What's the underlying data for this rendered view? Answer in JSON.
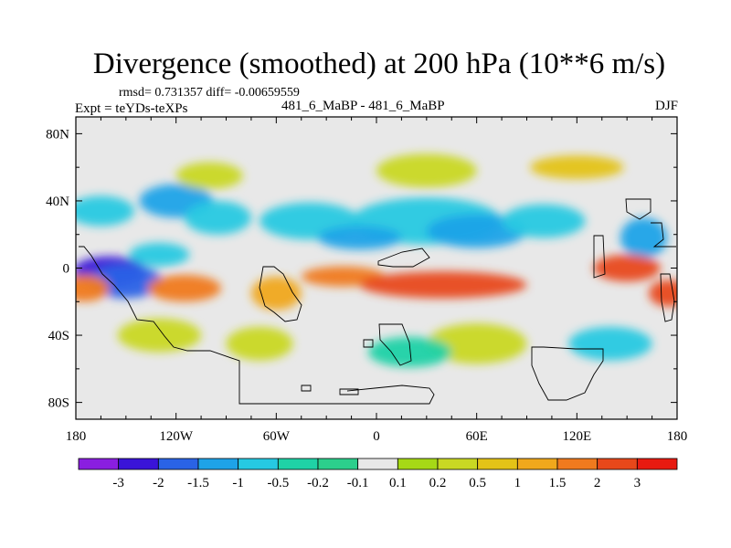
{
  "chart_data": {
    "type": "heatmap",
    "title": "Divergence (smoothed) at 200 hPa (10**6 m/s)",
    "stats": "rmsd= 0.731357 diff= -0.00659559",
    "left_label": "Expt = teYDs-teXPs",
    "center_label": "481_6_MaBP - 481_6_MaBP",
    "right_label": "DJF",
    "x_ticks": [
      "180",
      "120W",
      "60W",
      "0",
      "60E",
      "120E",
      "180"
    ],
    "x_range": [
      -180,
      180
    ],
    "y_ticks": [
      "80N",
      "40N",
      "0",
      "40S",
      "80S"
    ],
    "y_range": [
      -90,
      90
    ],
    "colorbar": {
      "labels": [
        "-3",
        "-2",
        "-1.5",
        "-1",
        "-0.5",
        "-0.2",
        "-0.1",
        "0.1",
        "0.2",
        "0.5",
        "1",
        "1.5",
        "2",
        "3"
      ],
      "colors": [
        "#8a1ee0",
        "#3a14d8",
        "#2a63e6",
        "#1ea3e8",
        "#26c9e2",
        "#1fd2a6",
        "#2ccf8c",
        "#e8e8e8",
        "#a6d916",
        "#c9d823",
        "#e4c317",
        "#f0a81c",
        "#f07a1e",
        "#e8481a",
        "#e81a10"
      ]
    },
    "field": [
      {
        "lon": -160,
        "lat": -2,
        "rx": 22,
        "ry": 9,
        "c": 1
      },
      {
        "lon": -150,
        "lat": -8,
        "rx": 22,
        "ry": 10,
        "c": 2
      },
      {
        "lon": -130,
        "lat": 8,
        "rx": 18,
        "ry": 7,
        "c": 4
      },
      {
        "lon": -165,
        "lat": 34,
        "rx": 20,
        "ry": 9,
        "c": 4
      },
      {
        "lon": -120,
        "lat": 40,
        "rx": 22,
        "ry": 10,
        "c": 3
      },
      {
        "lon": -95,
        "lat": 30,
        "rx": 20,
        "ry": 10,
        "c": 4
      },
      {
        "lon": -40,
        "lat": 28,
        "rx": 30,
        "ry": 11,
        "c": 4
      },
      {
        "lon": 30,
        "lat": 28,
        "rx": 45,
        "ry": 14,
        "c": 4
      },
      {
        "lon": 60,
        "lat": 22,
        "rx": 30,
        "ry": 10,
        "c": 3
      },
      {
        "lon": 100,
        "lat": 28,
        "rx": 25,
        "ry": 10,
        "c": 4
      },
      {
        "lon": -10,
        "lat": 18,
        "rx": 25,
        "ry": 7,
        "c": 3
      },
      {
        "lon": 160,
        "lat": 18,
        "rx": 14,
        "ry": 12,
        "c": 3
      },
      {
        "lon": -175,
        "lat": -12,
        "rx": 15,
        "ry": 8,
        "c": 12
      },
      {
        "lon": -115,
        "lat": -12,
        "rx": 22,
        "ry": 8,
        "c": 12
      },
      {
        "lon": -60,
        "lat": -15,
        "rx": 15,
        "ry": 10,
        "c": 11
      },
      {
        "lon": -20,
        "lat": -5,
        "rx": 25,
        "ry": 6,
        "c": 12
      },
      {
        "lon": 40,
        "lat": -10,
        "rx": 50,
        "ry": 8,
        "c": 13
      },
      {
        "lon": 150,
        "lat": 0,
        "rx": 20,
        "ry": 8,
        "c": 13
      },
      {
        "lon": 175,
        "lat": -15,
        "rx": 12,
        "ry": 8,
        "c": 13
      },
      {
        "lon": -70,
        "lat": -45,
        "rx": 20,
        "ry": 10,
        "c": 9
      },
      {
        "lon": -130,
        "lat": -40,
        "rx": 25,
        "ry": 10,
        "c": 9
      },
      {
        "lon": 60,
        "lat": -45,
        "rx": 30,
        "ry": 12,
        "c": 9
      },
      {
        "lon": 140,
        "lat": -45,
        "rx": 25,
        "ry": 10,
        "c": 4
      },
      {
        "lon": 20,
        "lat": -50,
        "rx": 25,
        "ry": 9,
        "c": 5
      },
      {
        "lon": -100,
        "lat": 55,
        "rx": 20,
        "ry": 8,
        "c": 9
      },
      {
        "lon": 30,
        "lat": 58,
        "rx": 30,
        "ry": 10,
        "c": 9
      },
      {
        "lon": 120,
        "lat": 60,
        "rx": 28,
        "ry": 7,
        "c": 10
      }
    ]
  }
}
